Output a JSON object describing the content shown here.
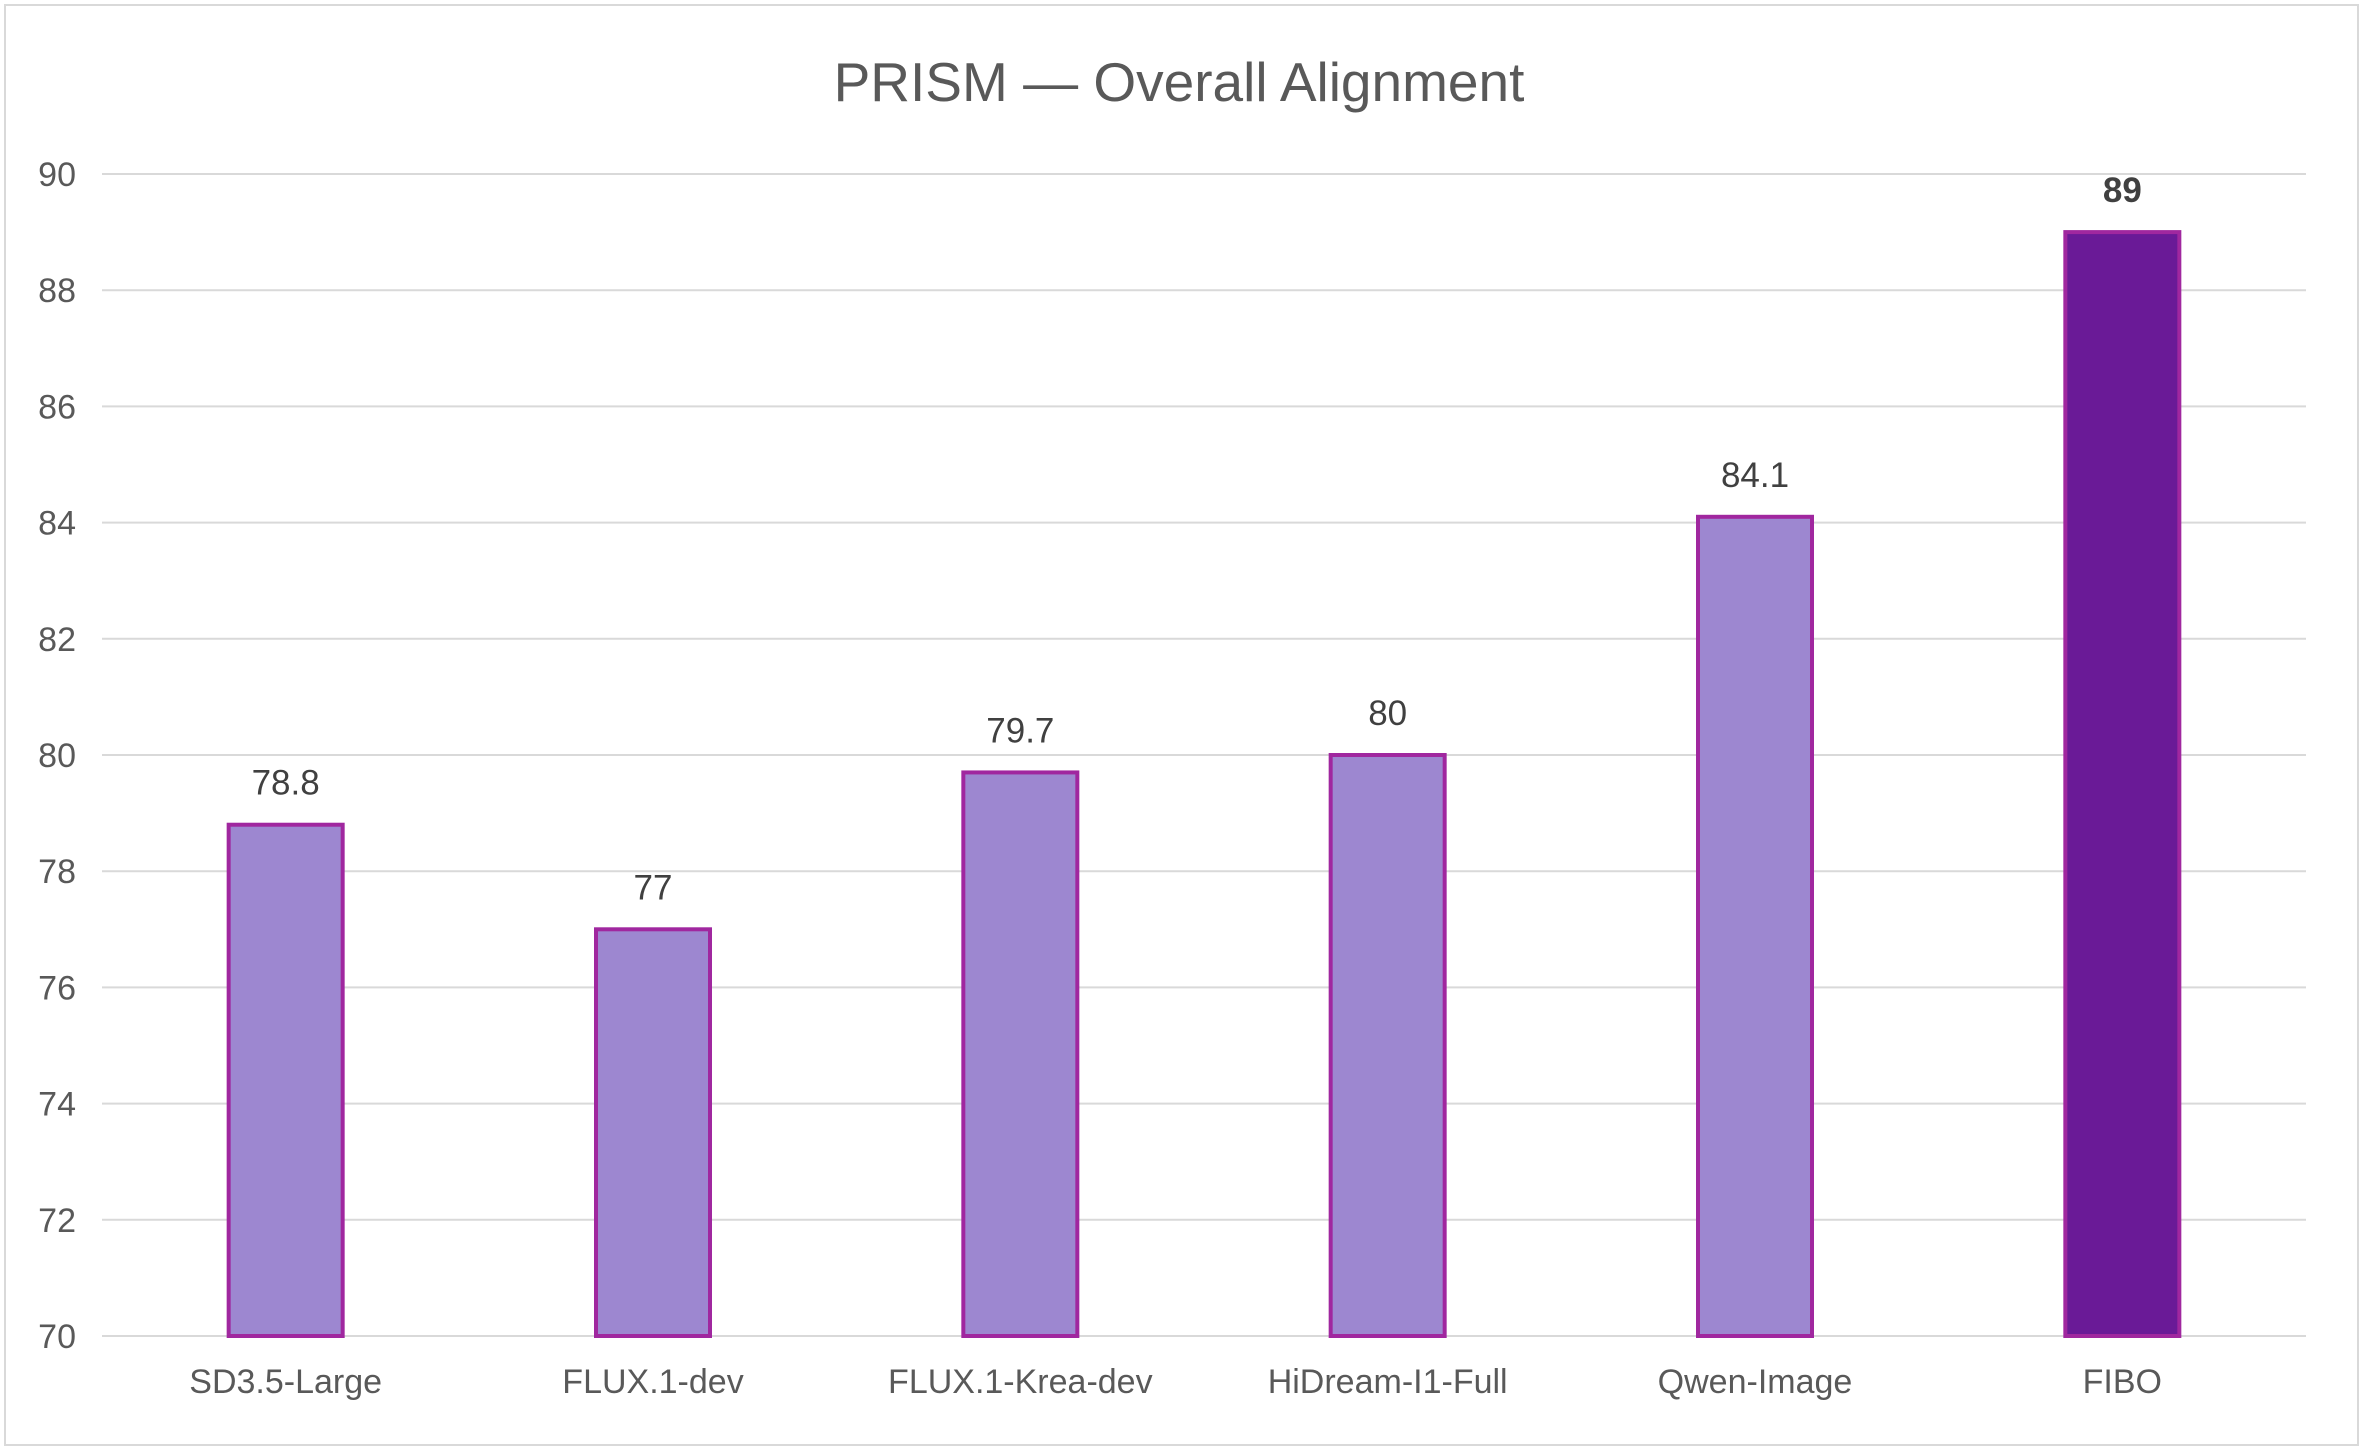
{
  "chart_data": {
    "type": "bar",
    "title": "PRISM — Overall Alignment",
    "categories": [
      "SD3.5-Large",
      "FLUX.1-dev",
      "FLUX.1-Krea-dev",
      "HiDream-I1-Full",
      "Qwen-Image",
      "FIBO"
    ],
    "values": [
      78.8,
      77,
      79.7,
      80,
      84.1,
      89
    ],
    "data_labels": [
      "78.8",
      "77",
      "79.7",
      "80",
      "84.1",
      "89"
    ],
    "highlight_index": 5,
    "xlabel": "",
    "ylabel": "",
    "ylim": [
      70,
      90
    ],
    "yticks": [
      70,
      72,
      74,
      76,
      78,
      80,
      82,
      84,
      86,
      88,
      90
    ],
    "grid": true,
    "legend": "none",
    "colors": {
      "bar_fill": "#9d87d0",
      "bar_stroke": "#a0279f",
      "highlight_fill": "#6a1a97",
      "highlight_stroke": "#a0279f",
      "grid": "#d9d9d9",
      "axis": "#d9d9d9"
    }
  }
}
